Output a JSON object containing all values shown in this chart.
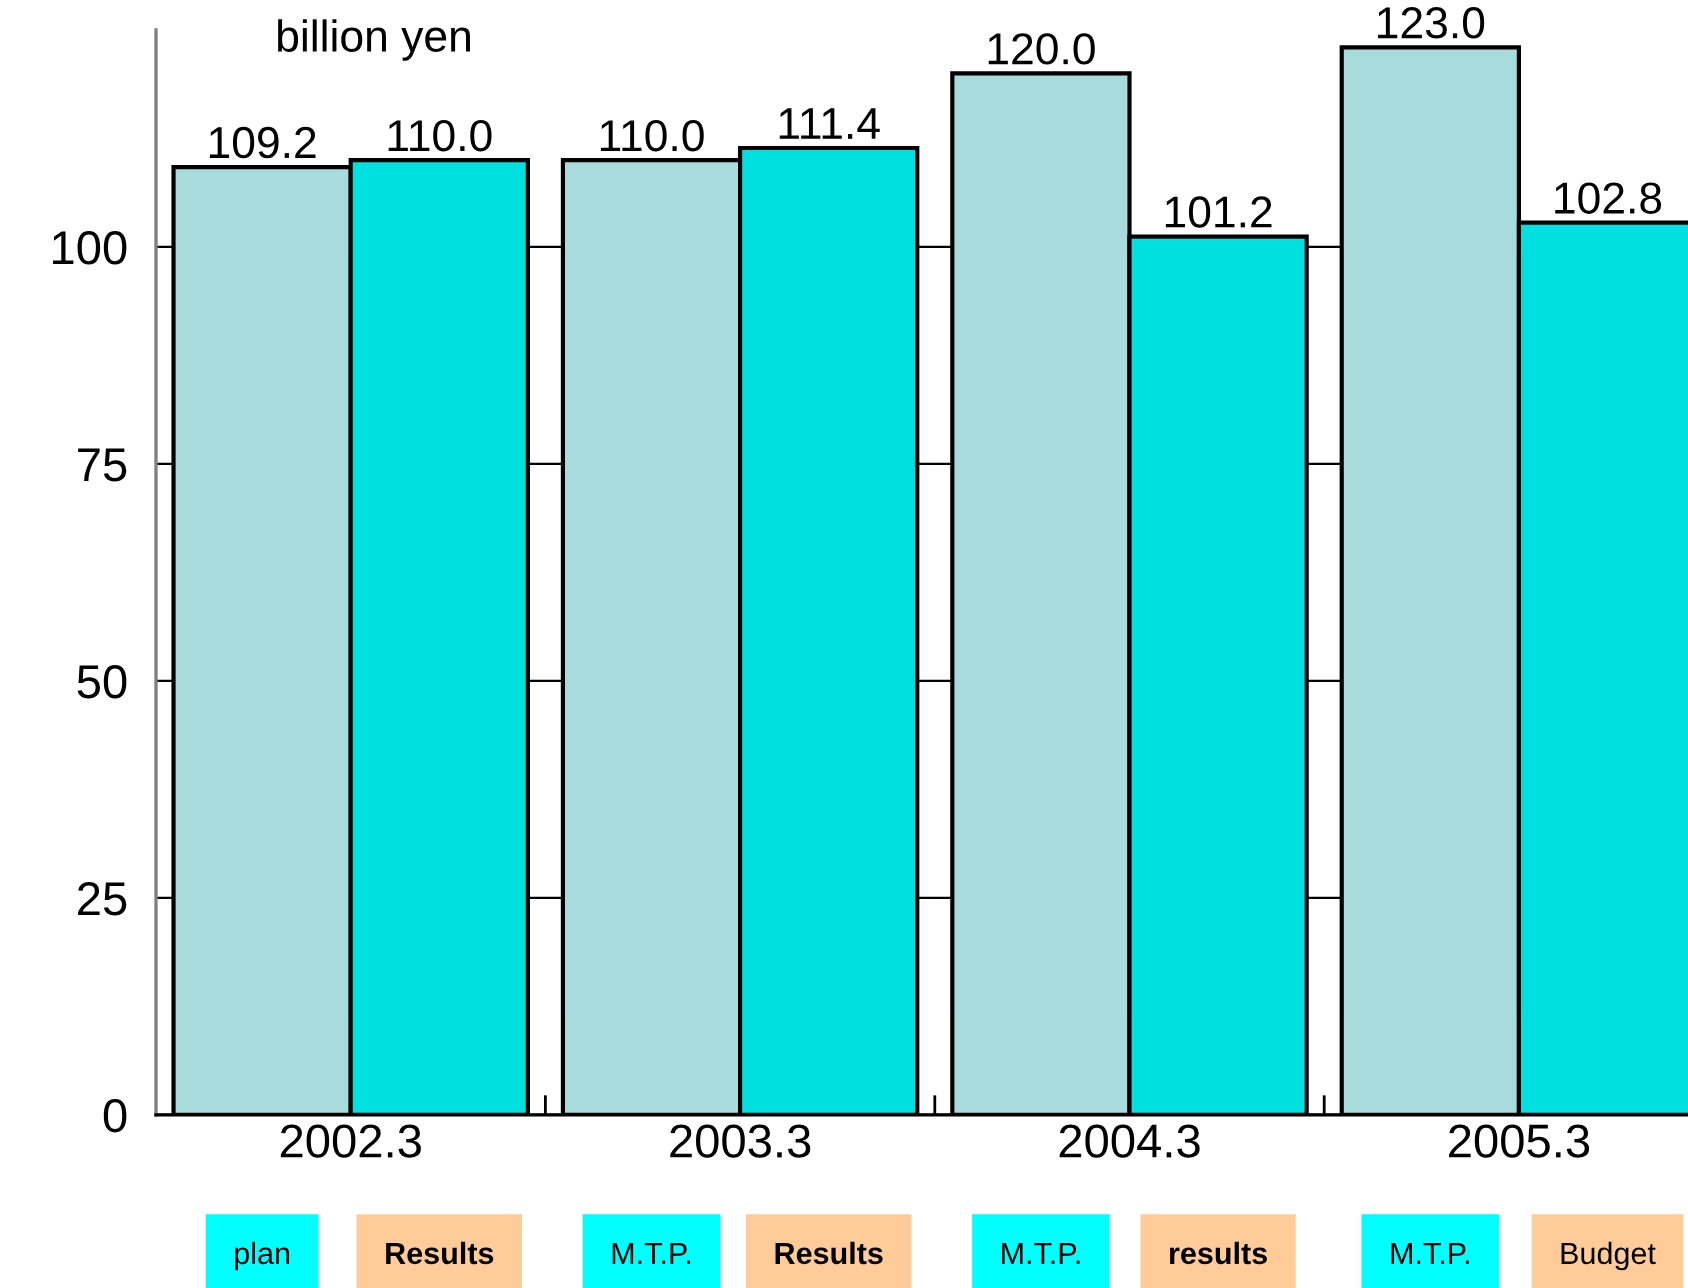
{
  "chart_data": {
    "type": "bar",
    "ylabel": "billion yen",
    "categories": [
      "2002.3",
      "2003.3",
      "2004.3",
      "2005.3"
    ],
    "series": [
      {
        "color": "#a8dcdc",
        "values": [
          109.2,
          110.0,
          120.0,
          123.0
        ],
        "value_labels": [
          "109.2",
          "110.0",
          "120.0",
          "123.0"
        ]
      },
      {
        "color": "#00e0e0",
        "values": [
          110.0,
          111.4,
          101.2,
          102.8
        ],
        "value_labels": [
          "110.0",
          "111.4",
          "101.2",
          "102.8"
        ]
      }
    ],
    "ylim": [
      0,
      125
    ],
    "yticks": [
      0,
      25,
      50,
      75,
      100
    ],
    "grid": "y",
    "annotations": [
      "plan",
      "Results",
      "M.T.P.",
      "Results",
      "M.T.P.",
      "results",
      "M.T.P.",
      "Budget"
    ]
  }
}
